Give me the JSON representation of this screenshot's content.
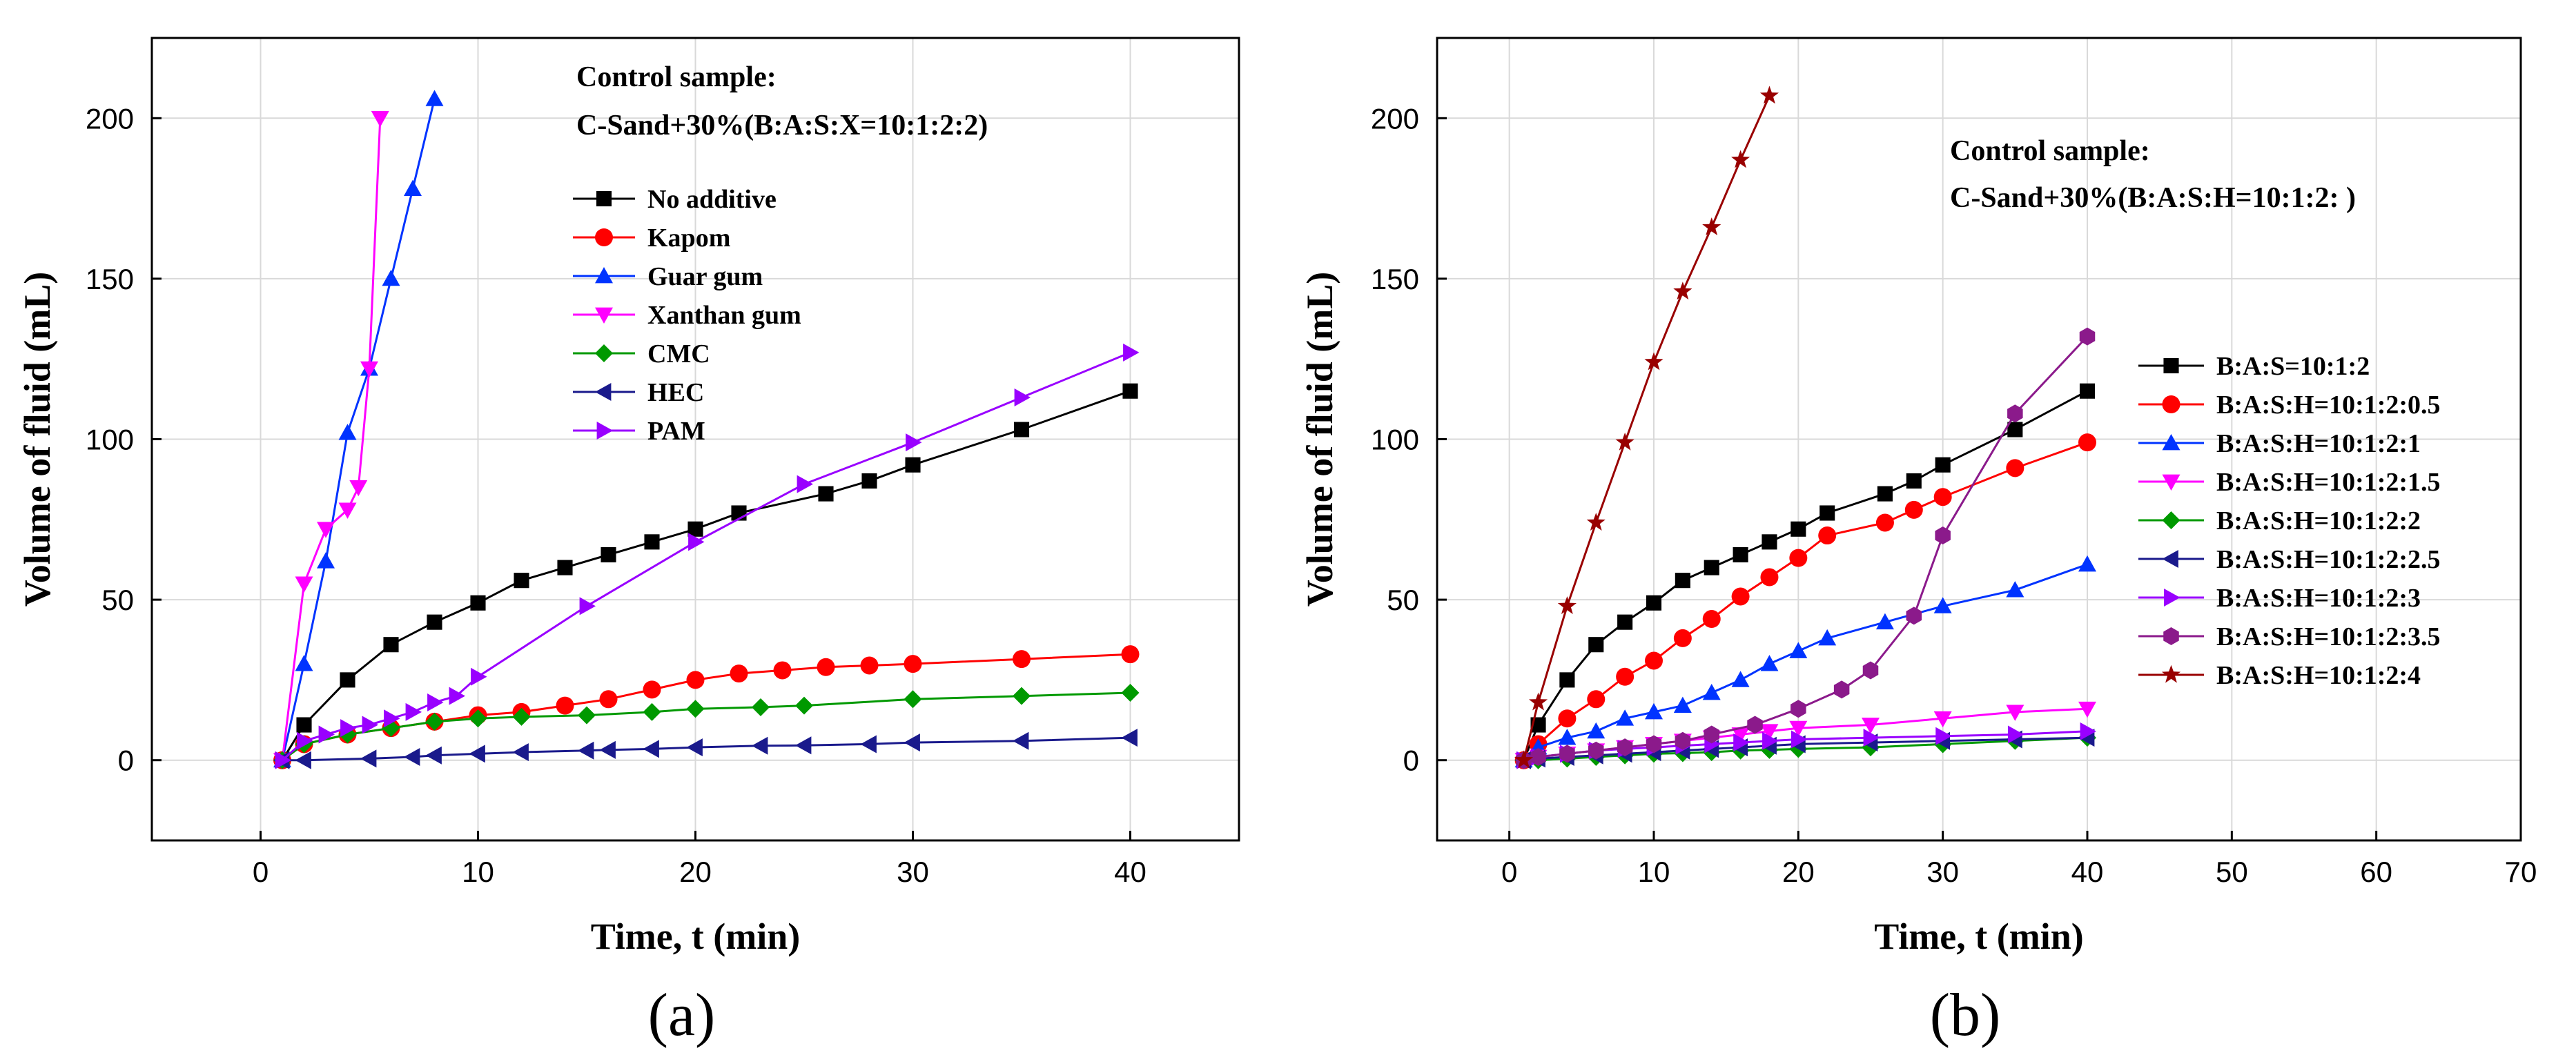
{
  "colors": {
    "black": "#000000",
    "red": "#ff0000",
    "blue": "#0033ff",
    "magenta": "#ff00ff",
    "green": "#009900",
    "navy": "#1a1a8c",
    "violet": "#9900ff",
    "purple": "#8b1a8b",
    "darkred": "#990000"
  },
  "chart_data": [
    {
      "type": "line",
      "panel_label": "(a)",
      "xlabel": "Time, t (min)",
      "ylabel": "Volume of fluid (mL)",
      "xlim": [
        -5,
        45
      ],
      "ylim": [
        -25,
        225
      ],
      "xticks": [
        0,
        10,
        20,
        30,
        40
      ],
      "yticks": [
        0,
        50,
        100,
        150,
        200
      ],
      "grid": true,
      "legend_position": "top-right",
      "annotation": [
        "Control sample:",
        "C-Sand+30%(B:A:S:X=10:1:2:2)"
      ],
      "series": [
        {
          "name": "No additive",
          "color": "#000000",
          "marker": "square",
          "x": [
            1,
            2,
            4,
            6,
            8,
            10,
            12,
            14,
            16,
            18,
            20,
            22,
            26,
            28,
            30,
            35,
            40
          ],
          "y": [
            0,
            11,
            25,
            36,
            43,
            49,
            56,
            60,
            64,
            68,
            72,
            77,
            83,
            87,
            92,
            103,
            115
          ]
        },
        {
          "name": "Kapom",
          "color": "#ff0000",
          "marker": "circle",
          "x": [
            1,
            2,
            4,
            6,
            8,
            10,
            12,
            14,
            16,
            18,
            20,
            22,
            24,
            26,
            28,
            30,
            35,
            40
          ],
          "y": [
            0,
            5,
            8,
            10,
            12,
            14,
            15,
            17,
            19,
            22,
            25,
            27,
            28,
            29,
            29.5,
            30,
            31.5,
            33
          ]
        },
        {
          "name": "Guar gum",
          "color": "#0033ff",
          "marker": "triangle-up",
          "x": [
            1,
            2,
            3,
            4,
            5,
            6,
            7,
            8
          ],
          "y": [
            0,
            30,
            62,
            102,
            122,
            150,
            178,
            206
          ]
        },
        {
          "name": "Xanthan gum",
          "color": "#ff00ff",
          "marker": "triangle-down",
          "x": [
            1,
            2,
            3,
            4,
            4.5,
            5,
            5.5
          ],
          "y": [
            0,
            55,
            72,
            78,
            85,
            122,
            200
          ]
        },
        {
          "name": "CMC",
          "color": "#009900",
          "marker": "diamond",
          "x": [
            1,
            2,
            4,
            6,
            8,
            10,
            12,
            15,
            18,
            20,
            23,
            25,
            30,
            35,
            40
          ],
          "y": [
            0,
            5,
            8,
            10,
            12,
            13,
            13.5,
            14,
            15,
            16,
            16.5,
            17,
            19,
            20,
            21
          ]
        },
        {
          "name": "HEC",
          "color": "#1a1a8c",
          "marker": "triangle-left",
          "x": [
            1,
            2,
            5,
            7,
            8,
            10,
            12,
            15,
            16,
            18,
            20,
            23,
            25,
            28,
            30,
            35,
            40
          ],
          "y": [
            0,
            0,
            0.5,
            1,
            1.5,
            2,
            2.5,
            3,
            3.2,
            3.5,
            4,
            4.5,
            4.6,
            5,
            5.5,
            6,
            7
          ]
        },
        {
          "name": "PAM",
          "color": "#9900ff",
          "marker": "triangle-right",
          "x": [
            1,
            2,
            3,
            4,
            5,
            6,
            7,
            8,
            9,
            10,
            15,
            20,
            25,
            30,
            35,
            40
          ],
          "y": [
            0,
            6,
            8,
            10,
            11,
            13,
            15,
            18,
            20,
            26,
            48,
            68,
            86,
            99,
            113,
            127
          ]
        }
      ]
    },
    {
      "type": "line",
      "panel_label": "(b)",
      "xlabel": "Time, t (min)",
      "ylabel": "Volume of fluid (mL)",
      "xlim": [
        -5,
        70
      ],
      "ylim": [
        -25,
        225
      ],
      "xticks": [
        0,
        10,
        20,
        30,
        40,
        50,
        60,
        70
      ],
      "yticks": [
        0,
        50,
        100,
        150,
        200
      ],
      "grid": true,
      "legend_position": "right",
      "annotation": [
        "Control sample:",
        "C-Sand+30%(B:A:S:H=10:1:2:  )"
      ],
      "series": [
        {
          "name": "B:A:S=10:1:2",
          "color": "#000000",
          "marker": "square",
          "x": [
            1,
            2,
            4,
            6,
            8,
            10,
            12,
            14,
            16,
            18,
            20,
            22,
            26,
            28,
            30,
            35,
            40
          ],
          "y": [
            0,
            11,
            25,
            36,
            43,
            49,
            56,
            60,
            64,
            68,
            72,
            77,
            83,
            87,
            92,
            103,
            115
          ]
        },
        {
          "name": "B:A:S:H=10:1:2:0.5",
          "color": "#ff0000",
          "marker": "circle",
          "x": [
            1,
            2,
            4,
            6,
            8,
            10,
            12,
            14,
            16,
            18,
            20,
            22,
            26,
            28,
            30,
            35,
            40
          ],
          "y": [
            0,
            5,
            13,
            19,
            26,
            31,
            38,
            44,
            51,
            57,
            63,
            70,
            74,
            78,
            82,
            91,
            99
          ]
        },
        {
          "name": "B:A:S:H=10:1:2:1",
          "color": "#0033ff",
          "marker": "triangle-up",
          "x": [
            1,
            2,
            4,
            6,
            8,
            10,
            12,
            14,
            16,
            18,
            20,
            22,
            26,
            30,
            35,
            40
          ],
          "y": [
            0,
            4,
            7,
            9,
            13,
            15,
            17,
            21,
            25,
            30,
            34,
            38,
            43,
            48,
            53,
            61
          ]
        },
        {
          "name": "B:A:S:H=10:1:2:1.5",
          "color": "#ff00ff",
          "marker": "triangle-down",
          "x": [
            1,
            2,
            4,
            6,
            8,
            10,
            12,
            14,
            16,
            18,
            20,
            25,
            30,
            35,
            40
          ],
          "y": [
            0,
            1,
            2,
            3,
            4,
            5,
            6,
            7,
            8,
            9,
            10,
            11,
            13,
            15,
            16
          ]
        },
        {
          "name": "B:A:S:H=10:1:2:2",
          "color": "#009900",
          "marker": "diamond",
          "x": [
            1,
            2,
            4,
            6,
            8,
            10,
            12,
            14,
            16,
            18,
            20,
            25,
            30,
            35,
            40
          ],
          "y": [
            0,
            0,
            0.5,
            1,
            1.5,
            2,
            2.2,
            2.5,
            3,
            3.2,
            3.5,
            4,
            5,
            6,
            7
          ]
        },
        {
          "name": "B:A:S:H=10:1:2:2.5",
          "color": "#1a1a8c",
          "marker": "triangle-left",
          "x": [
            1,
            2,
            4,
            6,
            8,
            10,
            12,
            14,
            16,
            18,
            20,
            25,
            30,
            35,
            40
          ],
          "y": [
            0,
            0.5,
            1,
            1.5,
            2,
            2.5,
            3,
            3.5,
            4,
            4.5,
            5,
            5.5,
            6,
            6.5,
            7
          ]
        },
        {
          "name": "B:A:S:H=10:1:2:3",
          "color": "#9900ff",
          "marker": "triangle-right",
          "x": [
            1,
            2,
            4,
            6,
            8,
            10,
            12,
            14,
            16,
            18,
            20,
            25,
            30,
            35,
            40
          ],
          "y": [
            0,
            1,
            2,
            3,
            3.5,
            4,
            4.5,
            5,
            5.5,
            6,
            6.5,
            7,
            7.5,
            8,
            9
          ]
        },
        {
          "name": "B:A:S:H=10:1:2:3.5",
          "color": "#8b1a8b",
          "marker": "hexagon",
          "x": [
            1,
            2,
            4,
            6,
            8,
            10,
            12,
            14,
            17,
            20,
            23,
            25,
            28,
            30,
            35,
            40
          ],
          "y": [
            0,
            1,
            2,
            3,
            4,
            5,
            6,
            8,
            11,
            16,
            22,
            28,
            45,
            70,
            108,
            132
          ]
        },
        {
          "name": "B:A:S:H=10:1:2:4",
          "color": "#990000",
          "marker": "star",
          "x": [
            1,
            2,
            4,
            6,
            8,
            10,
            12,
            14,
            16,
            18
          ],
          "y": [
            0,
            18,
            48,
            74,
            99,
            124,
            146,
            166,
            187,
            207
          ]
        }
      ]
    }
  ]
}
